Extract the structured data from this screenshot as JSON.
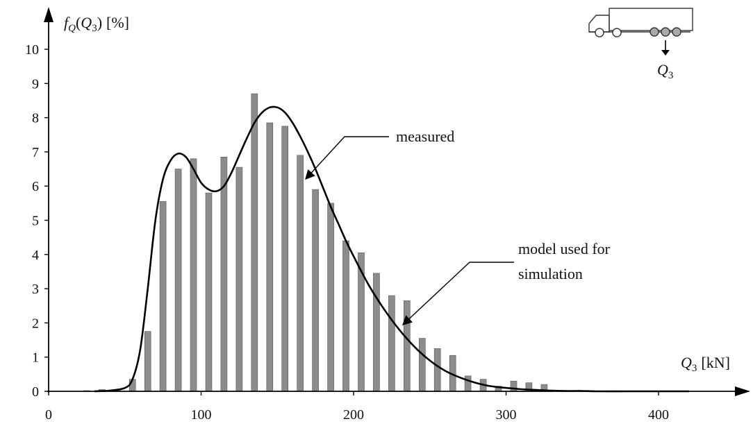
{
  "chart_data": {
    "type": "bar",
    "ylabel": {
      "f": "f",
      "sub_q": "Q",
      "open": "(",
      "q": "Q",
      "sub3": "3",
      "close": ")",
      "unit": "[%]"
    },
    "xlabel": {
      "q": "Q",
      "sub3": "3",
      "unit": "[kN]"
    },
    "xlim": [
      0,
      450
    ],
    "ylim": [
      0,
      10
    ],
    "x_ticks": [
      0,
      100,
      200,
      300,
      400
    ],
    "y_ticks": [
      0,
      1,
      2,
      3,
      4,
      5,
      6,
      7,
      8,
      9,
      10
    ],
    "grid": false,
    "bar_color": "#8c8c8c",
    "curve_color": "#000000",
    "series": [
      {
        "name": "measured",
        "type": "bar",
        "x": [
          25,
          35,
          45,
          55,
          65,
          75,
          85,
          95,
          105,
          115,
          125,
          135,
          145,
          155,
          165,
          175,
          185,
          195,
          205,
          215,
          225,
          235,
          245,
          255,
          265,
          275,
          285,
          295,
          305,
          315,
          325
        ],
        "values": [
          0.02,
          0.05,
          0.05,
          0.35,
          1.75,
          5.55,
          6.5,
          6.8,
          5.8,
          6.85,
          6.55,
          8.7,
          7.85,
          7.75,
          6.9,
          5.9,
          5.5,
          4.4,
          4.05,
          3.45,
          2.8,
          2.65,
          1.55,
          1.25,
          1.05,
          0.45,
          0.35,
          0.15,
          0.3,
          0.25,
          0.2
        ]
      },
      {
        "name": "model used for simulation",
        "type": "line",
        "x": [
          30,
          40,
          50,
          55,
          60,
          65,
          70,
          75,
          80,
          85,
          90,
          95,
          100,
          105,
          110,
          115,
          120,
          125,
          130,
          135,
          140,
          145,
          150,
          155,
          160,
          165,
          170,
          175,
          180,
          185,
          190,
          195,
          200,
          210,
          220,
          230,
          240,
          250,
          260,
          270,
          280,
          290,
          300,
          310,
          320,
          330,
          340,
          350,
          360,
          380,
          400,
          420
        ],
        "values": [
          0.0,
          0.02,
          0.1,
          0.35,
          1.2,
          3.0,
          5.0,
          6.2,
          6.75,
          6.95,
          6.85,
          6.5,
          6.1,
          5.9,
          5.85,
          6.0,
          6.4,
          6.9,
          7.4,
          7.85,
          8.15,
          8.3,
          8.3,
          8.15,
          7.85,
          7.45,
          7.0,
          6.5,
          5.95,
          5.4,
          4.9,
          4.4,
          3.95,
          3.1,
          2.4,
          1.8,
          1.3,
          0.9,
          0.6,
          0.4,
          0.25,
          0.15,
          0.1,
          0.06,
          0.04,
          0.02,
          0.01,
          0.01,
          0.0,
          0.0,
          0.0,
          0.0
        ]
      }
    ],
    "annotations": {
      "measured": "measured",
      "model_line1": "model used for",
      "model_line2": "simulation"
    },
    "icon": {
      "name": "truck-icon",
      "q": "Q",
      "sub3": "3"
    }
  }
}
